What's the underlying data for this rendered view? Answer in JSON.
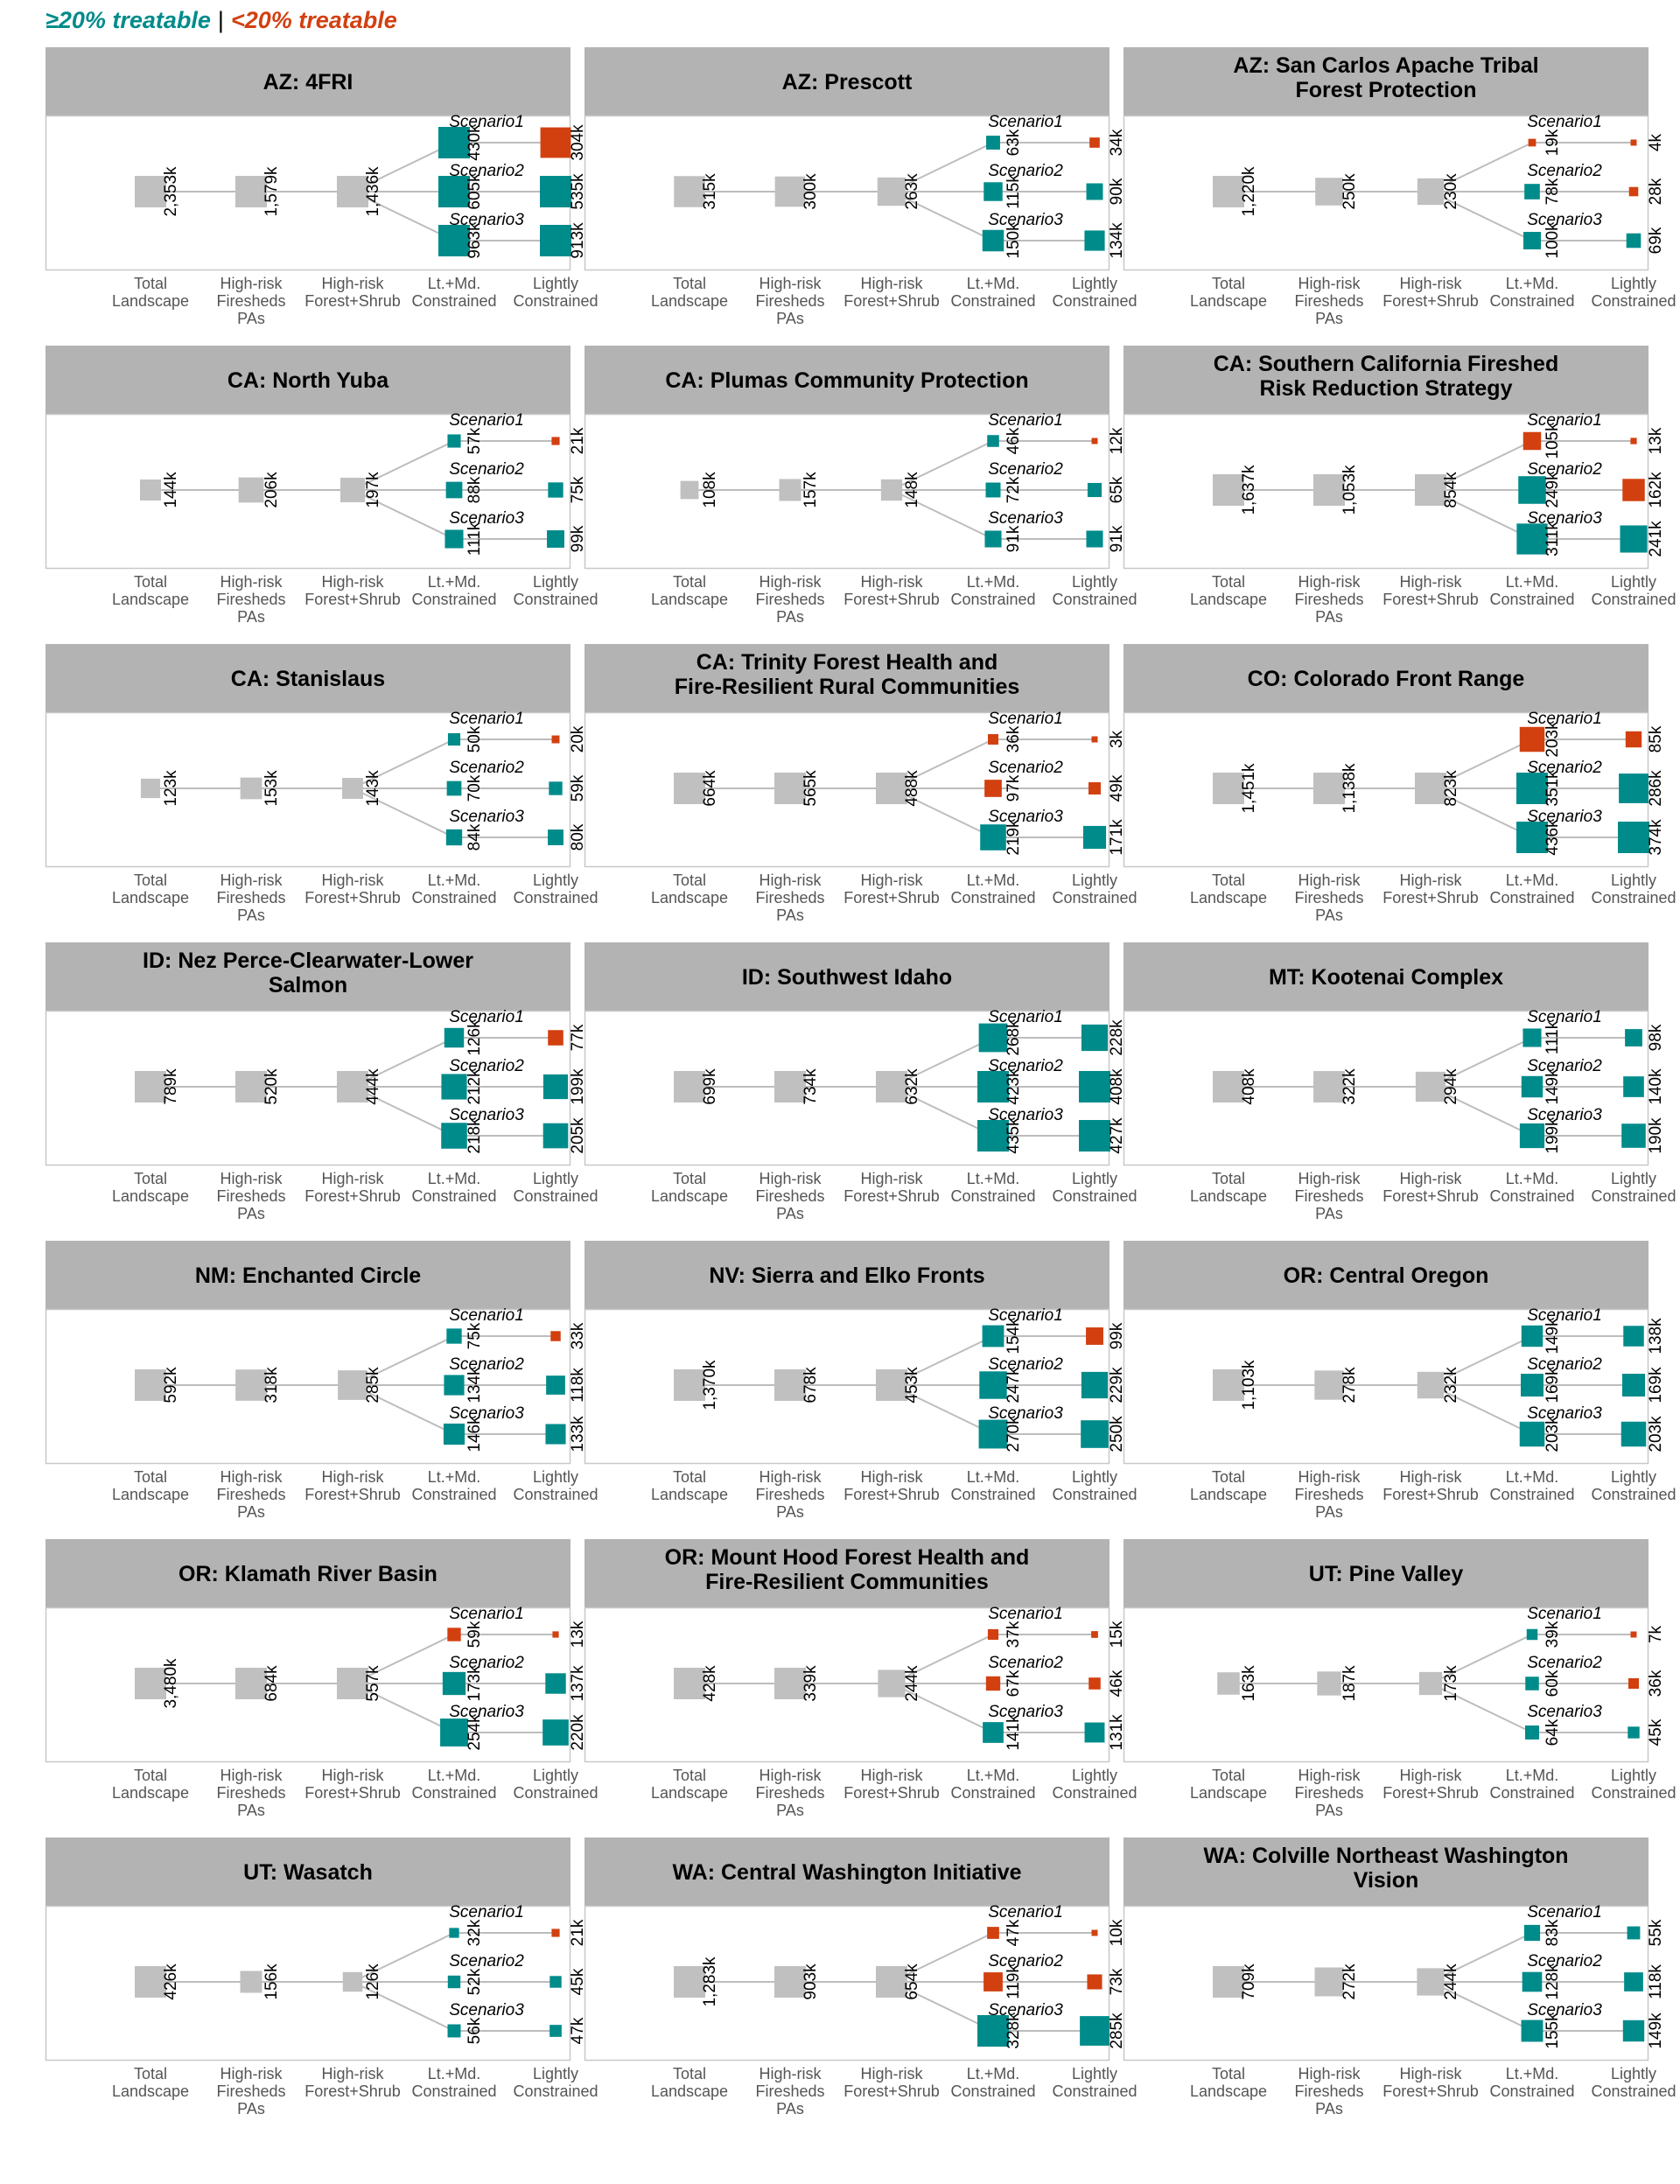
{
  "legend": {
    "high_label": "≥20% treatable",
    "separator": "|",
    "low_label": "<20% treatable",
    "high_color": "#008B8B",
    "low_color": "#D24010"
  },
  "colors": {
    "base": "#C0C0C0",
    "line": "#BDBDBD",
    "header_bg": "#B3B3B3"
  },
  "stage_labels": [
    [
      "Total",
      "Landscape"
    ],
    [
      "High-risk",
      "Firesheds",
      "PAs"
    ],
    [
      "High-risk",
      "Forest+Shrub"
    ],
    [
      "Lt.+Md.",
      "Constrained"
    ],
    [
      "Lightly",
      "Constrained"
    ]
  ],
  "scenario_labels": [
    "Scenario1",
    "Scenario2",
    "Scenario3"
  ],
  "chart_data": [
    {
      "type": "flow",
      "title": [
        "AZ: 4FRI"
      ],
      "total": "2,353k",
      "pas": "1,579k",
      "forest": "1,436k",
      "scenarios": [
        {
          "ltmd": "430k",
          "light": "304k",
          "ltmd_cat": "high",
          "light_cat": "low"
        },
        {
          "ltmd": "605k",
          "light": "535k",
          "ltmd_cat": "high",
          "light_cat": "high"
        },
        {
          "ltmd": "963k",
          "light": "913k",
          "ltmd_cat": "high",
          "light_cat": "high"
        }
      ]
    },
    {
      "type": "flow",
      "title": [
        "AZ: Prescott"
      ],
      "total": "315k",
      "pas": "300k",
      "forest": "263k",
      "scenarios": [
        {
          "ltmd": "63k",
          "light": "34k",
          "ltmd_cat": "high",
          "light_cat": "low"
        },
        {
          "ltmd": "115k",
          "light": "90k",
          "ltmd_cat": "high",
          "light_cat": "high"
        },
        {
          "ltmd": "150k",
          "light": "134k",
          "ltmd_cat": "high",
          "light_cat": "high"
        }
      ]
    },
    {
      "type": "flow",
      "title": [
        "AZ: San Carlos Apache Tribal",
        "Forest Protection"
      ],
      "total": "1,220k",
      "pas": "250k",
      "forest": "230k",
      "scenarios": [
        {
          "ltmd": "19k",
          "light": "4k",
          "ltmd_cat": "low",
          "light_cat": "low"
        },
        {
          "ltmd": "78k",
          "light": "28k",
          "ltmd_cat": "high",
          "light_cat": "low"
        },
        {
          "ltmd": "100k",
          "light": "69k",
          "ltmd_cat": "high",
          "light_cat": "high"
        }
      ]
    },
    {
      "type": "flow",
      "title": [
        "CA: North Yuba"
      ],
      "total": "144k",
      "pas": "206k",
      "forest": "197k",
      "scenarios": [
        {
          "ltmd": "57k",
          "light": "21k",
          "ltmd_cat": "high",
          "light_cat": "low"
        },
        {
          "ltmd": "88k",
          "light": "75k",
          "ltmd_cat": "high",
          "light_cat": "high"
        },
        {
          "ltmd": "111k",
          "light": "99k",
          "ltmd_cat": "high",
          "light_cat": "high"
        }
      ]
    },
    {
      "type": "flow",
      "title": [
        "CA: Plumas Community Protection"
      ],
      "total": "108k",
      "pas": "157k",
      "forest": "148k",
      "scenarios": [
        {
          "ltmd": "46k",
          "light": "12k",
          "ltmd_cat": "high",
          "light_cat": "low"
        },
        {
          "ltmd": "72k",
          "light": "65k",
          "ltmd_cat": "high",
          "light_cat": "high"
        },
        {
          "ltmd": "91k",
          "light": "91k",
          "ltmd_cat": "high",
          "light_cat": "high"
        }
      ]
    },
    {
      "type": "flow",
      "title": [
        "CA: Southern California Fireshed",
        "Risk Reduction Strategy"
      ],
      "total": "1,637k",
      "pas": "1,053k",
      "forest": "854k",
      "scenarios": [
        {
          "ltmd": "105k",
          "light": "13k",
          "ltmd_cat": "low",
          "light_cat": "low"
        },
        {
          "ltmd": "249k",
          "light": "162k",
          "ltmd_cat": "high",
          "light_cat": "low"
        },
        {
          "ltmd": "311k",
          "light": "241k",
          "ltmd_cat": "high",
          "light_cat": "high"
        }
      ]
    },
    {
      "type": "flow",
      "title": [
        "CA: Stanislaus"
      ],
      "total": "123k",
      "pas": "153k",
      "forest": "143k",
      "scenarios": [
        {
          "ltmd": "50k",
          "light": "20k",
          "ltmd_cat": "high",
          "light_cat": "low"
        },
        {
          "ltmd": "70k",
          "light": "59k",
          "ltmd_cat": "high",
          "light_cat": "high"
        },
        {
          "ltmd": "84k",
          "light": "80k",
          "ltmd_cat": "high",
          "light_cat": "high"
        }
      ]
    },
    {
      "type": "flow",
      "title": [
        "CA: Trinity Forest Health and",
        "Fire-Resilient Rural Communities"
      ],
      "total": "664k",
      "pas": "565k",
      "forest": "488k",
      "scenarios": [
        {
          "ltmd": "36k",
          "light": "3k",
          "ltmd_cat": "low",
          "light_cat": "low"
        },
        {
          "ltmd": "97k",
          "light": "49k",
          "ltmd_cat": "low",
          "light_cat": "low"
        },
        {
          "ltmd": "219k",
          "light": "171k",
          "ltmd_cat": "high",
          "light_cat": "high"
        }
      ]
    },
    {
      "type": "flow",
      "title": [
        "CO: Colorado Front Range"
      ],
      "total": "1,451k",
      "pas": "1,138k",
      "forest": "823k",
      "scenarios": [
        {
          "ltmd": "203k",
          "light": "85k",
          "ltmd_cat": "low",
          "light_cat": "low"
        },
        {
          "ltmd": "351k",
          "light": "286k",
          "ltmd_cat": "high",
          "light_cat": "high"
        },
        {
          "ltmd": "436k",
          "light": "374k",
          "ltmd_cat": "high",
          "light_cat": "high"
        }
      ]
    },
    {
      "type": "flow",
      "title": [
        "ID: Nez Perce-Clearwater-Lower",
        "Salmon"
      ],
      "total": "789k",
      "pas": "520k",
      "forest": "444k",
      "scenarios": [
        {
          "ltmd": "126k",
          "light": "77k",
          "ltmd_cat": "high",
          "light_cat": "low"
        },
        {
          "ltmd": "212k",
          "light": "199k",
          "ltmd_cat": "high",
          "light_cat": "high"
        },
        {
          "ltmd": "218k",
          "light": "205k",
          "ltmd_cat": "high",
          "light_cat": "high"
        }
      ]
    },
    {
      "type": "flow",
      "title": [
        "ID: Southwest Idaho"
      ],
      "total": "699k",
      "pas": "734k",
      "forest": "632k",
      "scenarios": [
        {
          "ltmd": "268k",
          "light": "228k",
          "ltmd_cat": "high",
          "light_cat": "high"
        },
        {
          "ltmd": "423k",
          "light": "408k",
          "ltmd_cat": "high",
          "light_cat": "high"
        },
        {
          "ltmd": "435k",
          "light": "427k",
          "ltmd_cat": "high",
          "light_cat": "high"
        }
      ]
    },
    {
      "type": "flow",
      "title": [
        "MT: Kootenai Complex"
      ],
      "total": "408k",
      "pas": "322k",
      "forest": "294k",
      "scenarios": [
        {
          "ltmd": "111k",
          "light": "98k",
          "ltmd_cat": "high",
          "light_cat": "high"
        },
        {
          "ltmd": "149k",
          "light": "140k",
          "ltmd_cat": "high",
          "light_cat": "high"
        },
        {
          "ltmd": "199k",
          "light": "190k",
          "ltmd_cat": "high",
          "light_cat": "high"
        }
      ]
    },
    {
      "type": "flow",
      "title": [
        "NM: Enchanted Circle"
      ],
      "total": "592k",
      "pas": "318k",
      "forest": "285k",
      "scenarios": [
        {
          "ltmd": "75k",
          "light": "33k",
          "ltmd_cat": "high",
          "light_cat": "low"
        },
        {
          "ltmd": "134k",
          "light": "118k",
          "ltmd_cat": "high",
          "light_cat": "high"
        },
        {
          "ltmd": "146k",
          "light": "133k",
          "ltmd_cat": "high",
          "light_cat": "high"
        }
      ]
    },
    {
      "type": "flow",
      "title": [
        "NV: Sierra and Elko Fronts"
      ],
      "total": "1,370k",
      "pas": "678k",
      "forest": "453k",
      "scenarios": [
        {
          "ltmd": "154k",
          "light": "99k",
          "ltmd_cat": "high",
          "light_cat": "low"
        },
        {
          "ltmd": "247k",
          "light": "229k",
          "ltmd_cat": "high",
          "light_cat": "high"
        },
        {
          "ltmd": "270k",
          "light": "250k",
          "ltmd_cat": "high",
          "light_cat": "high"
        }
      ]
    },
    {
      "type": "flow",
      "title": [
        "OR: Central Oregon"
      ],
      "total": "1,103k",
      "pas": "278k",
      "forest": "232k",
      "scenarios": [
        {
          "ltmd": "149k",
          "light": "138k",
          "ltmd_cat": "high",
          "light_cat": "high"
        },
        {
          "ltmd": "169k",
          "light": "169k",
          "ltmd_cat": "high",
          "light_cat": "high"
        },
        {
          "ltmd": "203k",
          "light": "203k",
          "ltmd_cat": "high",
          "light_cat": "high"
        }
      ]
    },
    {
      "type": "flow",
      "title": [
        "OR: Klamath River Basin"
      ],
      "total": "3,480k",
      "pas": "684k",
      "forest": "557k",
      "scenarios": [
        {
          "ltmd": "59k",
          "light": "13k",
          "ltmd_cat": "low",
          "light_cat": "low"
        },
        {
          "ltmd": "173k",
          "light": "137k",
          "ltmd_cat": "high",
          "light_cat": "high"
        },
        {
          "ltmd": "254k",
          "light": "220k",
          "ltmd_cat": "high",
          "light_cat": "high"
        }
      ]
    },
    {
      "type": "flow",
      "title": [
        "OR: Mount Hood Forest Health and",
        "Fire-Resilient Communities"
      ],
      "total": "428k",
      "pas": "339k",
      "forest": "244k",
      "scenarios": [
        {
          "ltmd": "37k",
          "light": "15k",
          "ltmd_cat": "low",
          "light_cat": "low"
        },
        {
          "ltmd": "67k",
          "light": "46k",
          "ltmd_cat": "low",
          "light_cat": "low"
        },
        {
          "ltmd": "141k",
          "light": "131k",
          "ltmd_cat": "high",
          "light_cat": "high"
        }
      ]
    },
    {
      "type": "flow",
      "title": [
        "UT: Pine Valley"
      ],
      "total": "163k",
      "pas": "187k",
      "forest": "173k",
      "scenarios": [
        {
          "ltmd": "39k",
          "light": "7k",
          "ltmd_cat": "high",
          "light_cat": "low"
        },
        {
          "ltmd": "60k",
          "light": "36k",
          "ltmd_cat": "high",
          "light_cat": "low"
        },
        {
          "ltmd": "64k",
          "light": "45k",
          "ltmd_cat": "high",
          "light_cat": "high"
        }
      ]
    },
    {
      "type": "flow",
      "title": [
        "UT: Wasatch"
      ],
      "total": "426k",
      "pas": "156k",
      "forest": "126k",
      "scenarios": [
        {
          "ltmd": "32k",
          "light": "21k",
          "ltmd_cat": "high",
          "light_cat": "low"
        },
        {
          "ltmd": "52k",
          "light": "45k",
          "ltmd_cat": "high",
          "light_cat": "high"
        },
        {
          "ltmd": "56k",
          "light": "47k",
          "ltmd_cat": "high",
          "light_cat": "high"
        }
      ]
    },
    {
      "type": "flow",
      "title": [
        "WA: Central Washington Initiative"
      ],
      "total": "1,283k",
      "pas": "903k",
      "forest": "654k",
      "scenarios": [
        {
          "ltmd": "47k",
          "light": "10k",
          "ltmd_cat": "low",
          "light_cat": "low"
        },
        {
          "ltmd": "119k",
          "light": "73k",
          "ltmd_cat": "low",
          "light_cat": "low"
        },
        {
          "ltmd": "328k",
          "light": "285k",
          "ltmd_cat": "high",
          "light_cat": "high"
        }
      ]
    },
    {
      "type": "flow",
      "title": [
        "WA: Colville Northeast Washington",
        "Vision"
      ],
      "total": "709k",
      "pas": "272k",
      "forest": "244k",
      "scenarios": [
        {
          "ltmd": "83k",
          "light": "55k",
          "ltmd_cat": "high",
          "light_cat": "high"
        },
        {
          "ltmd": "128k",
          "light": "118k",
          "ltmd_cat": "high",
          "light_cat": "high"
        },
        {
          "ltmd": "155k",
          "light": "149k",
          "ltmd_cat": "high",
          "light_cat": "high"
        }
      ]
    }
  ]
}
